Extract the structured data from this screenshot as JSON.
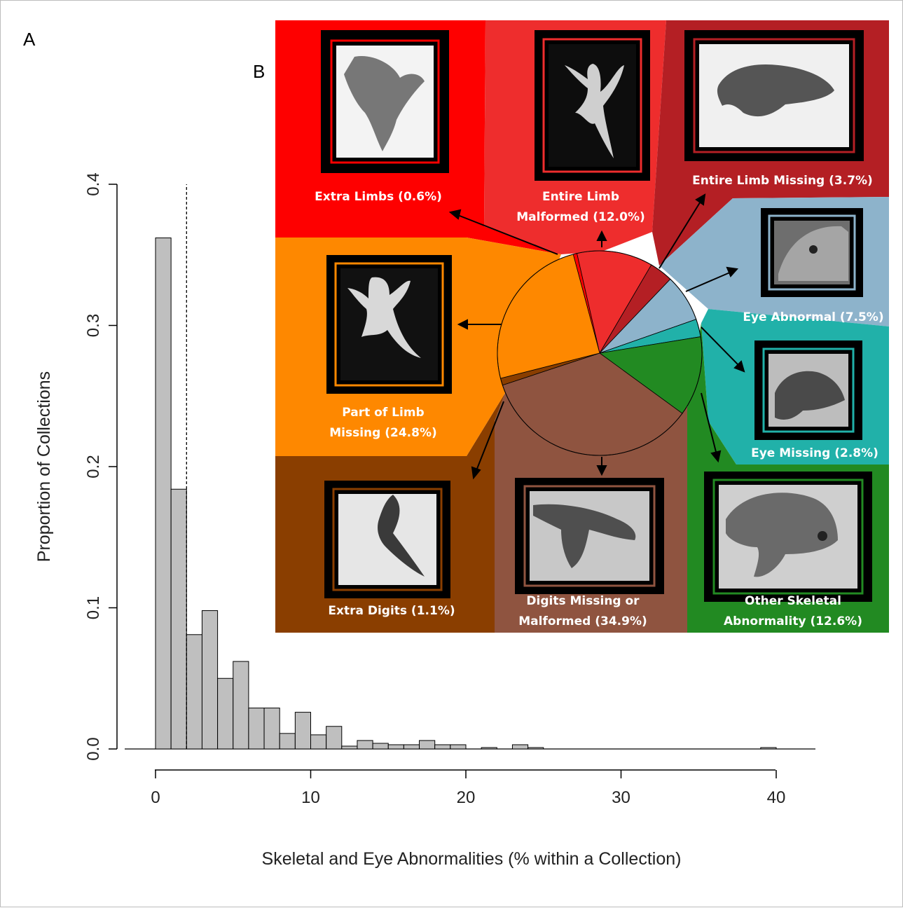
{
  "panels": {
    "a": "A",
    "b": "B"
  },
  "chart_data": [
    {
      "type": "bar",
      "panel": "A",
      "xlabel": "Skeletal and Eye Abnormalities (% within a Collection)",
      "ylabel": "Proportion of Collections",
      "xlim": [
        0,
        42.5
      ],
      "ylim": [
        0,
        0.4
      ],
      "xticks": [
        "0",
        "10",
        "20",
        "30",
        "40"
      ],
      "yticks": [
        "0.0",
        "0.1",
        "0.2",
        "0.3",
        "0.4"
      ],
      "bin_width": 1,
      "bin_starts": [
        0,
        1,
        2,
        3,
        4,
        5,
        6,
        7,
        8,
        9,
        10,
        11,
        12,
        13,
        14,
        15,
        16,
        17,
        18,
        19,
        20,
        21,
        22,
        23,
        24,
        25,
        26,
        27,
        28,
        29,
        30,
        31,
        32,
        33,
        34,
        35,
        36,
        37,
        38,
        39
      ],
      "values": [
        0.362,
        0.184,
        0.081,
        0.098,
        0.05,
        0.062,
        0.029,
        0.029,
        0.011,
        0.026,
        0.01,
        0.016,
        0.002,
        0.006,
        0.004,
        0.003,
        0.003,
        0.006,
        0.003,
        0.003,
        0,
        0.001,
        0,
        0.003,
        0.001,
        0,
        0,
        0,
        0,
        0,
        0,
        0,
        0,
        0,
        0,
        0,
        0,
        0,
        0,
        0.001
      ],
      "reference_line": {
        "x": 2,
        "style": "dashed"
      },
      "bar_color": "#bfbfbf"
    },
    {
      "type": "pie",
      "panel": "B",
      "slices": [
        {
          "label": "Extra Limbs (0.6%)",
          "value": 0.6,
          "color": "#fe0000"
        },
        {
          "label_lines": [
            "Entire Limb",
            "Malformed (12.0%)"
          ],
          "value": 12.0,
          "color": "#ee2d2d"
        },
        {
          "label": "Entire Limb Missing (3.7%)",
          "value": 3.7,
          "color": "#b41f24"
        },
        {
          "label": "Eye Abnormal (7.5%)",
          "value": 7.5,
          "color": "#8db3cb"
        },
        {
          "label": "Eye Missing (2.8%)",
          "value": 2.8,
          "color": "#21b1a9"
        },
        {
          "label_lines": [
            "Other Skeletal",
            "Abnormality (12.6%)"
          ],
          "value": 12.6,
          "color": "#228a22"
        },
        {
          "label_lines": [
            "Digits Missing or",
            "Malformed (34.9%)"
          ],
          "value": 34.9,
          "color": "#8f5440"
        },
        {
          "label": "Extra Digits (1.1%)",
          "value": 1.1,
          "color": "#8a3e00"
        },
        {
          "label_lines": [
            "Part of Limb",
            "Missing (24.8%)"
          ],
          "value": 24.8,
          "color": "#fe8800"
        }
      ]
    }
  ]
}
